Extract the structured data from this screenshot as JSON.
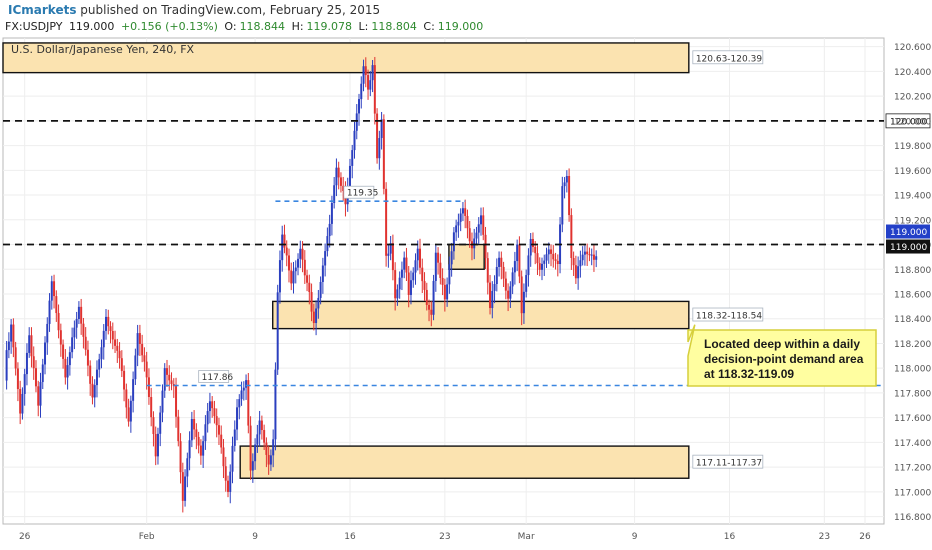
{
  "header": {
    "brand": "ICmarkets",
    "published": "published on TradingView.com, February 25, 2015",
    "symbol": "FX:USDJPY",
    "last": "119.000",
    "change": "+0.156 (+0.13%)",
    "open_label": "O:",
    "open": "118.844",
    "high_label": "H:",
    "high": "119.078",
    "low_label": "L:",
    "low": "118.804",
    "close_label": "C:",
    "close": "119.000"
  },
  "colors": {
    "up": "#2b3fbf",
    "down": "#e0322f",
    "zone_fill": "#fbe3b0",
    "zone_border": "#111111",
    "blue_dash": "#3a86e0",
    "black_dash": "#111111",
    "callout_fill": "#fffea0",
    "callout_border": "#d6cf3c",
    "price_tag_bg": "#2340c8",
    "axis_text": "#555555",
    "grid": "#eeeeee"
  },
  "chart_data": {
    "type": "candlestick",
    "title": "U.S. Dollar/Japanese Yen, 240, FX",
    "ylim": [
      116.74,
      120.67
    ],
    "y_ticks": [
      116.8,
      117.0,
      117.2,
      117.4,
      117.6,
      117.8,
      118.0,
      118.2,
      118.4,
      118.6,
      118.8,
      119.0,
      119.2,
      119.4,
      119.6,
      119.8,
      120.0,
      120.2,
      120.4,
      120.6
    ],
    "y_tick_labels": [
      "116.800",
      "117.000",
      "117.200",
      "117.400",
      "117.600",
      "117.800",
      "118.000",
      "118.200",
      "118.400",
      "118.600",
      "118.800",
      "119.000",
      "119.200",
      "119.400",
      "119.600",
      "119.800",
      "120.000",
      "120.200",
      "120.400",
      "120.600"
    ],
    "x_ticks": [
      {
        "label": "26",
        "day": -9
      },
      {
        "label": "Feb",
        "day": 0
      },
      {
        "label": "9",
        "day": 8
      },
      {
        "label": "16",
        "day": 15
      },
      {
        "label": "23",
        "day": 22
      },
      {
        "label": "Mar",
        "day": 28
      },
      {
        "label": "9",
        "day": 36
      },
      {
        "label": "16",
        "day": 43
      },
      {
        "label": "23",
        "day": 50
      },
      {
        "label": "26",
        "day": 53
      }
    ],
    "x_range_days": [
      -10.6,
      54.4
    ],
    "candles_per_day": 6,
    "candle_start_day": -10.5,
    "candle_points": [
      [
        0,
        117.9
      ],
      [
        4,
        118.35
      ],
      [
        8,
        117.65
      ],
      [
        12,
        118.25
      ],
      [
        16,
        117.7
      ],
      [
        22,
        118.7
      ],
      [
        28,
        117.95
      ],
      [
        34,
        118.5
      ],
      [
        40,
        117.75
      ],
      [
        46,
        118.4
      ],
      [
        52,
        118.1
      ],
      [
        56,
        117.55
      ],
      [
        60,
        118.3
      ],
      [
        64,
        117.95
      ],
      [
        68,
        117.3
      ],
      [
        72,
        118.0
      ],
      [
        76,
        117.85
      ],
      [
        80,
        116.95
      ],
      [
        84,
        117.6
      ],
      [
        88,
        117.3
      ],
      [
        92,
        117.75
      ],
      [
        96,
        117.45
      ],
      [
        100,
        117.0
      ],
      [
        104,
        117.7
      ],
      [
        108,
        117.9
      ],
      [
        110,
        117.15
      ],
      [
        114,
        117.6
      ],
      [
        118,
        117.2
      ],
      [
        120,
        117.4
      ],
      [
        122,
        118.6
      ],
      [
        124,
        119.1
      ],
      [
        128,
        118.7
      ],
      [
        132,
        118.95
      ],
      [
        136,
        118.6
      ],
      [
        138,
        118.35
      ],
      [
        144,
        119.05
      ],
      [
        148,
        119.6
      ],
      [
        152,
        119.35
      ],
      [
        156,
        119.9
      ],
      [
        160,
        120.45
      ],
      [
        162,
        120.25
      ],
      [
        164,
        120.45
      ],
      [
        166,
        119.7
      ],
      [
        168,
        120.0
      ],
      [
        170,
        118.9
      ],
      [
        172,
        119.0
      ],
      [
        174,
        118.55
      ],
      [
        178,
        118.9
      ],
      [
        180,
        118.6
      ],
      [
        184,
        118.95
      ],
      [
        188,
        118.5
      ],
      [
        190,
        118.45
      ],
      [
        192,
        118.95
      ],
      [
        196,
        118.55
      ],
      [
        200,
        119.1
      ],
      [
        204,
        119.3
      ],
      [
        208,
        118.95
      ],
      [
        212,
        119.25
      ],
      [
        216,
        118.5
      ],
      [
        220,
        118.9
      ],
      [
        224,
        118.55
      ],
      [
        228,
        119.0
      ],
      [
        230,
        118.45
      ],
      [
        234,
        119.05
      ],
      [
        238,
        118.8
      ],
      [
        242,
        118.95
      ],
      [
        246,
        118.85
      ],
      [
        248,
        119.45
      ],
      [
        250,
        119.55
      ],
      [
        252,
        118.9
      ],
      [
        254,
        118.75
      ],
      [
        258,
        118.95
      ],
      [
        262,
        118.9
      ]
    ],
    "levels": [
      {
        "price": 120.0,
        "style": "black-dash",
        "label": "120.000"
      },
      {
        "price": 119.0,
        "style": "black-dash",
        "label": "119.000"
      },
      {
        "price": 119.35,
        "style": "blue-dash",
        "label": "119.35",
        "from_day": 9.5,
        "to_day": 23.5
      },
      {
        "price": 117.86,
        "style": "blue-dash",
        "label": "117.86",
        "from_day": 0,
        "to_day": 54.4
      }
    ],
    "zones": [
      {
        "low": 120.39,
        "high": 120.63,
        "label": "120.63-120.39",
        "from_day": -10.6,
        "to_day": 40
      },
      {
        "low": 118.32,
        "high": 118.54,
        "label": "118.32-118.54",
        "from_day": 9.3,
        "to_day": 40
      },
      {
        "low": 117.11,
        "high": 117.37,
        "label": "117.11-117.37",
        "from_day": 6.9,
        "to_day": 40
      },
      {
        "low": 118.8,
        "high": 119.0,
        "label": "",
        "from_day": 22.3,
        "to_day": 24.9
      }
    ],
    "price_tag": {
      "label": "119.000",
      "price": 119.0
    },
    "annotation": {
      "lines": [
        "Located deep within a daily",
        "decision-point demand area",
        "at 118.32-119.09"
      ],
      "anchor_day": 40,
      "anchor_price": 118.4
    }
  }
}
